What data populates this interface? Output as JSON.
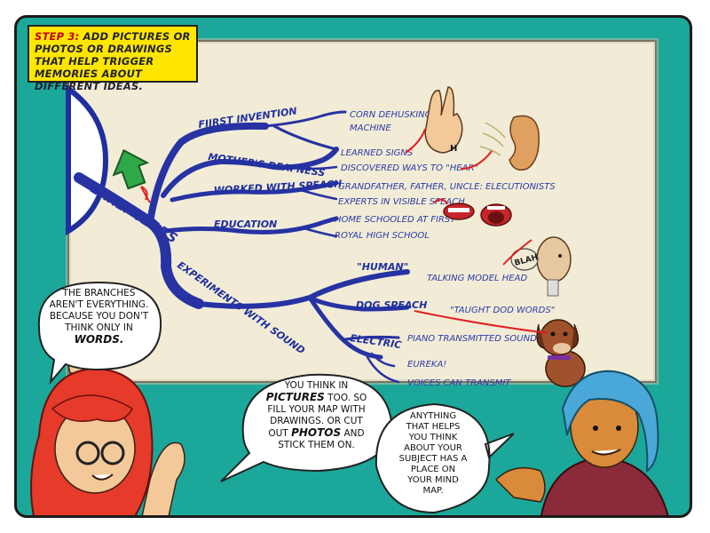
{
  "caption": {
    "step": "STEP 3:",
    "text": "ADD PICTURES OR PHOTOS OR DRAWINGS THAT HELP TRIGGER MEMORIES ABOUT DIFFERENT IDEAS."
  },
  "mindmap": {
    "central": "EARLY YEARS",
    "branches": {
      "first_invention": "FIIRST INVENTION",
      "mothers_deafness": "MOTHER'S DEAFNESS",
      "worked_with_speach": "WORKED WITH SPEACH",
      "education": "EDUCATION",
      "experiments_with_sound": "EXPERIMENTS WITH SOUND"
    },
    "leaves": {
      "corn_line1": "CORN DEHUSKING",
      "corn_line2": "MACHINE",
      "learned_signs": "LEARNED SIGNS",
      "discovered_hear": "DISCOVERED WAYS TO \"HEAR\"",
      "grandfather": "GRANDFATHER, FATHER, UNCLE: ELECUTIONISTS",
      "experts": "EXPERTS IN VISIBLE SPEACH",
      "home_schooled": "HOME SCHOOLED AT FIRST",
      "royal_high": "ROYAL HIGH SCHOOL",
      "human": "\"HUMAN\"",
      "talking_model": "TALKING MODEL HEAD",
      "dog_speach": "DOG SPEACH",
      "taught_dod": "\"TAUGHT DOD WORDS\"",
      "electric": "ELECTRIC",
      "piano": "PIANO TRANSMITTED SOUND",
      "eureka": "EUREKA!",
      "voices": "VOICES CAN TRANSMIT"
    },
    "sign_letter": "H",
    "blah": "BLAH"
  },
  "bubbles": {
    "left_lines": [
      "THE BRANCHES",
      "AREN'T EVERYTHING.",
      "BECAUSE YOU DON'T",
      "THINK ONLY IN"
    ],
    "left_emph": "WORDS.",
    "middle_l1": "YOU THINK IN",
    "middle_emph1": "PICTURES",
    "middle_l2": " TOO. SO",
    "middle_l3": "FILL YOUR MAP WITH",
    "middle_l4": "DRAWINGS. OR CUT",
    "middle_l5": "OUT",
    "middle_emph2": "PHOTOS",
    "middle_l6": "AND",
    "middle_l7": "STICK THEM ON.",
    "right_lines": [
      "ANYTHING",
      "THAT HELPS",
      "YOU THINK",
      "ABOUT YOUR",
      "SUBJECT HAS A",
      "PLACE ON",
      "YOUR MIND",
      "MAP."
    ]
  },
  "colors": {
    "panel_bg": "#1ba89a",
    "board": "#f2ecd6",
    "branch": "#2733a3",
    "caption_bg": "#ffe600",
    "arrow": "#e02020"
  }
}
